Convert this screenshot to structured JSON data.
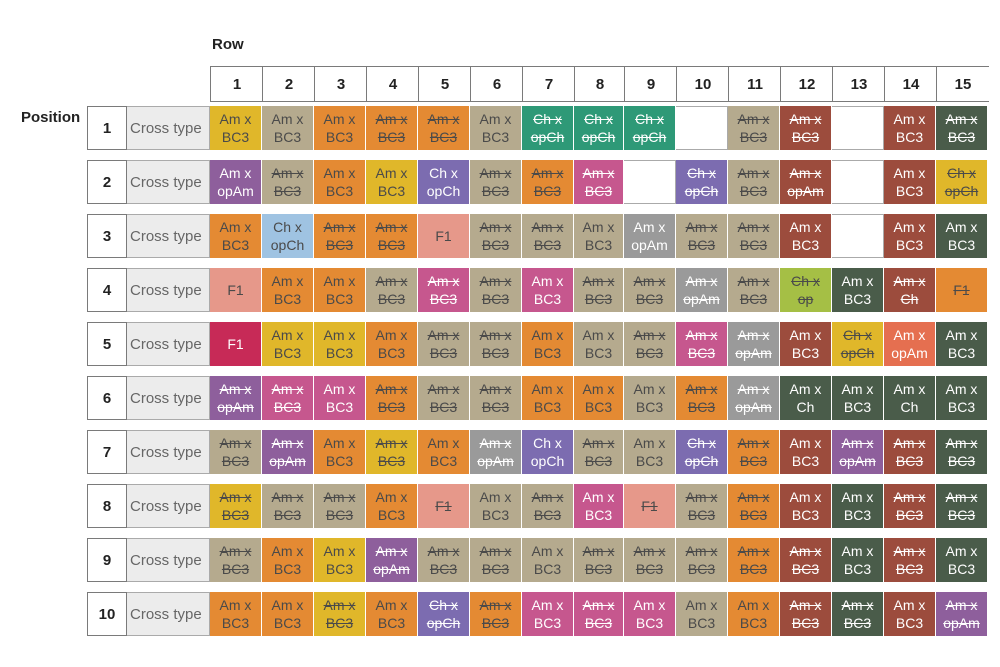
{
  "title_row": "Row",
  "title_position": "Position",
  "cross_type_label": "Cross type",
  "columns": [
    "1",
    "2",
    "3",
    "4",
    "5",
    "6",
    "7",
    "8",
    "9",
    "10",
    "11",
    "12",
    "13",
    "14",
    "15"
  ],
  "colors": {
    "Y": "#e0b72a",
    "O": "#e48a33",
    "G": "#b5aa8e",
    "T": "#2e9977",
    "B": "#9c4c3d",
    "W": "#ffffff",
    "P": "#8e5f9c",
    "K": "#c6578e",
    "V": "#7c6cb0",
    "L": "#9fc3e2",
    "S": "#e6988a",
    "R": "#c72a57",
    "M": "#9a9a9a",
    "N": "#a5bf45",
    "D": "#4a5c4a",
    "E": "#e56f50"
  },
  "rows": [
    {
      "pos": "1",
      "cells": [
        {
          "t": "Am x\nBC3",
          "c": "Y",
          "s": false
        },
        {
          "t": "Am x\nBC3",
          "c": "G",
          "s": false
        },
        {
          "t": "Am x\nBC3",
          "c": "O",
          "s": false
        },
        {
          "t": "Am x\nBC3",
          "c": "O",
          "s": true
        },
        {
          "t": "Am x\nBC3",
          "c": "O",
          "s": true
        },
        {
          "t": "Am x\nBC3",
          "c": "G",
          "s": false
        },
        {
          "t": "Ch x\nopCh",
          "c": "T",
          "s": true
        },
        {
          "t": "Ch x\nopCh",
          "c": "T",
          "s": true
        },
        {
          "t": "Ch x\nopCh",
          "c": "T",
          "s": true
        },
        {
          "t": "",
          "c": "W",
          "s": false
        },
        {
          "t": "Am x\nBC3",
          "c": "G",
          "s": true
        },
        {
          "t": "Am x\nBC3",
          "c": "B",
          "s": true
        },
        {
          "t": "",
          "c": "W",
          "s": false
        },
        {
          "t": "Am x\nBC3",
          "c": "B",
          "s": false
        },
        {
          "t": "Am x\nBC3",
          "c": "D",
          "s": true
        }
      ]
    },
    {
      "pos": "2",
      "cells": [
        {
          "t": "Am x\nopAm",
          "c": "P",
          "s": false
        },
        {
          "t": "Am x\nBC3",
          "c": "G",
          "s": true
        },
        {
          "t": "Am x\nBC3",
          "c": "O",
          "s": false
        },
        {
          "t": "Am x\nBC3",
          "c": "Y",
          "s": false
        },
        {
          "t": "Ch x\nopCh",
          "c": "V",
          "s": false
        },
        {
          "t": "Am x\nBC3",
          "c": "G",
          "s": true
        },
        {
          "t": "Am x\nBC3",
          "c": "O",
          "s": true
        },
        {
          "t": "Am x\nBC3",
          "c": "K",
          "s": true
        },
        {
          "t": "",
          "c": "W",
          "s": false
        },
        {
          "t": "Ch x\nopCh",
          "c": "V",
          "s": true
        },
        {
          "t": "Am x\nBC3",
          "c": "G",
          "s": true
        },
        {
          "t": "Am x\nopAm",
          "c": "B",
          "s": true
        },
        {
          "t": "",
          "c": "W",
          "s": false
        },
        {
          "t": "Am x\nBC3",
          "c": "B",
          "s": false
        },
        {
          "t": "Ch x\nopCh",
          "c": "Y",
          "s": true
        }
      ]
    },
    {
      "pos": "3",
      "cells": [
        {
          "t": "Am x\nBC3",
          "c": "O",
          "s": false
        },
        {
          "t": "Ch x\nopCh",
          "c": "L",
          "s": false
        },
        {
          "t": "Am x\nBC3",
          "c": "O",
          "s": true
        },
        {
          "t": "Am x\nBC3",
          "c": "O",
          "s": true
        },
        {
          "t": "F1",
          "c": "S",
          "s": false
        },
        {
          "t": "Am x\nBC3",
          "c": "G",
          "s": true
        },
        {
          "t": "Am x\nBC3",
          "c": "G",
          "s": true
        },
        {
          "t": "Am x\nBC3",
          "c": "G",
          "s": false
        },
        {
          "t": "Am x\nopAm",
          "c": "M",
          "s": false
        },
        {
          "t": "Am x\nBC3",
          "c": "G",
          "s": true
        },
        {
          "t": "Am x\nBC3",
          "c": "G",
          "s": true
        },
        {
          "t": "Am x\nBC3",
          "c": "B",
          "s": false
        },
        {
          "t": "",
          "c": "W",
          "s": false
        },
        {
          "t": "Am x\nBC3",
          "c": "B",
          "s": false
        },
        {
          "t": "Am x\nBC3",
          "c": "D",
          "s": false
        }
      ]
    },
    {
      "pos": "4",
      "cells": [
        {
          "t": "F1",
          "c": "S",
          "s": false
        },
        {
          "t": "Am x\nBC3",
          "c": "O",
          "s": false
        },
        {
          "t": "Am x\nBC3",
          "c": "O",
          "s": false
        },
        {
          "t": "Am x\nBC3",
          "c": "G",
          "s": true
        },
        {
          "t": "Am x\nBC3",
          "c": "K",
          "s": true
        },
        {
          "t": "Am x\nBC3",
          "c": "G",
          "s": true
        },
        {
          "t": "Am x\nBC3",
          "c": "K",
          "s": false
        },
        {
          "t": "Am x\nBC3",
          "c": "G",
          "s": true
        },
        {
          "t": "Am x\nBC3",
          "c": "G",
          "s": true
        },
        {
          "t": "Am x\nopAm",
          "c": "M",
          "s": true
        },
        {
          "t": "Am x\nBC3",
          "c": "G",
          "s": true
        },
        {
          "t": "Ch x\nop",
          "c": "N",
          "s": true
        },
        {
          "t": "Am x\nBC3",
          "c": "D",
          "s": false
        },
        {
          "t": "Am x\nCh",
          "c": "B",
          "s": true
        },
        {
          "t": "F1",
          "c": "O",
          "s": true
        }
      ]
    },
    {
      "pos": "5",
      "cells": [
        {
          "t": "F1",
          "c": "R",
          "s": false
        },
        {
          "t": "Am x\nBC3",
          "c": "Y",
          "s": false
        },
        {
          "t": "Am x\nBC3",
          "c": "Y",
          "s": false
        },
        {
          "t": "Am x\nBC3",
          "c": "O",
          "s": false
        },
        {
          "t": "Am x\nBC3",
          "c": "G",
          "s": true
        },
        {
          "t": "Am x\nBC3",
          "c": "G",
          "s": true
        },
        {
          "t": "Am x\nBC3",
          "c": "O",
          "s": false
        },
        {
          "t": "Am x\nBC3",
          "c": "G",
          "s": false
        },
        {
          "t": "Am x\nBC3",
          "c": "G",
          "s": true
        },
        {
          "t": "Am x\nBC3",
          "c": "K",
          "s": true
        },
        {
          "t": "Am x\nopAm",
          "c": "M",
          "s": true
        },
        {
          "t": "Am x\nBC3",
          "c": "B",
          "s": false
        },
        {
          "t": "Ch x\nopCh",
          "c": "Y",
          "s": true
        },
        {
          "t": "Am x\nopAm",
          "c": "E",
          "s": false
        },
        {
          "t": "Am x\nBC3",
          "c": "D",
          "s": false
        }
      ]
    },
    {
      "pos": "6",
      "cells": [
        {
          "t": "Am x\nopAm",
          "c": "P",
          "s": true
        },
        {
          "t": "Am x\nBC3",
          "c": "K",
          "s": true
        },
        {
          "t": "Am x\nBC3",
          "c": "K",
          "s": false
        },
        {
          "t": "Am x\nBC3",
          "c": "O",
          "s": true
        },
        {
          "t": "Am x\nBC3",
          "c": "G",
          "s": true
        },
        {
          "t": "Am x\nBC3",
          "c": "G",
          "s": true
        },
        {
          "t": "Am x\nBC3",
          "c": "O",
          "s": false
        },
        {
          "t": "Am x\nBC3",
          "c": "O",
          "s": false
        },
        {
          "t": "Am x\nBC3",
          "c": "G",
          "s": false
        },
        {
          "t": "Am x\nBC3",
          "c": "O",
          "s": true
        },
        {
          "t": "Am x\nopAm",
          "c": "M",
          "s": true
        },
        {
          "t": "Am x\nCh",
          "c": "D",
          "s": false
        },
        {
          "t": "Am x\nBC3",
          "c": "D",
          "s": false
        },
        {
          "t": "Am x\nCh",
          "c": "D",
          "s": false
        },
        {
          "t": "Am x\nBC3",
          "c": "D",
          "s": false
        }
      ]
    },
    {
      "pos": "7",
      "cells": [
        {
          "t": "Am x\nBC3",
          "c": "G",
          "s": true
        },
        {
          "t": "Am x\nopAm",
          "c": "P",
          "s": true
        },
        {
          "t": "Am x\nBC3",
          "c": "O",
          "s": false
        },
        {
          "t": "Am x\nBC3",
          "c": "Y",
          "s": true
        },
        {
          "t": "Am x\nBC3",
          "c": "O",
          "s": false
        },
        {
          "t": "Am x\nopAm",
          "c": "M",
          "s": true
        },
        {
          "t": "Ch x\nopCh",
          "c": "V",
          "s": false
        },
        {
          "t": "Am x\nBC3",
          "c": "G",
          "s": true
        },
        {
          "t": "Am x\nBC3",
          "c": "G",
          "s": false
        },
        {
          "t": "Ch x\nopCh",
          "c": "V",
          "s": true
        },
        {
          "t": "Am x\nBC3",
          "c": "O",
          "s": true
        },
        {
          "t": "Am x\nBC3",
          "c": "B",
          "s": false
        },
        {
          "t": "Am x\nopAm",
          "c": "P",
          "s": true
        },
        {
          "t": "Am x\nBC3",
          "c": "B",
          "s": true
        },
        {
          "t": "Am x\nBC3",
          "c": "D",
          "s": true
        }
      ]
    },
    {
      "pos": "8",
      "cells": [
        {
          "t": "Am x\nBC3",
          "c": "Y",
          "s": true
        },
        {
          "t": "Am x\nBC3",
          "c": "G",
          "s": true
        },
        {
          "t": "Am x\nBC3",
          "c": "G",
          "s": true
        },
        {
          "t": "Am x\nBC3",
          "c": "O",
          "s": false
        },
        {
          "t": "F1",
          "c": "S",
          "s": true
        },
        {
          "t": "Am x\nBC3",
          "c": "G",
          "s": false
        },
        {
          "t": "Am x\nBC3",
          "c": "G",
          "s": true
        },
        {
          "t": "Am x\nBC3",
          "c": "K",
          "s": false
        },
        {
          "t": "F1",
          "c": "S",
          "s": true
        },
        {
          "t": "Am x\nBC3",
          "c": "G",
          "s": true
        },
        {
          "t": "Am x\nBC3",
          "c": "O",
          "s": true
        },
        {
          "t": "Am x\nBC3",
          "c": "B",
          "s": false
        },
        {
          "t": "Am x\nBC3",
          "c": "D",
          "s": false
        },
        {
          "t": "Am x\nBC3",
          "c": "B",
          "s": true
        },
        {
          "t": "Am x\nBC3",
          "c": "D",
          "s": true
        }
      ]
    },
    {
      "pos": "9",
      "cells": [
        {
          "t": "Am x\nBC3",
          "c": "G",
          "s": true
        },
        {
          "t": "Am x\nBC3",
          "c": "O",
          "s": false
        },
        {
          "t": "Am x\nBC3",
          "c": "Y",
          "s": false
        },
        {
          "t": "Am x\nopAm",
          "c": "P",
          "s": true
        },
        {
          "t": "Am x\nBC3",
          "c": "G",
          "s": true
        },
        {
          "t": "Am x\nBC3",
          "c": "G",
          "s": true
        },
        {
          "t": "Am x\nBC3",
          "c": "G",
          "s": false
        },
        {
          "t": "Am x\nBC3",
          "c": "G",
          "s": true
        },
        {
          "t": "Am x\nBC3",
          "c": "G",
          "s": true
        },
        {
          "t": "Am x\nBC3",
          "c": "G",
          "s": true
        },
        {
          "t": "Am x\nBC3",
          "c": "O",
          "s": true
        },
        {
          "t": "Am x\nBC3",
          "c": "B",
          "s": true
        },
        {
          "t": "Am x\nBC3",
          "c": "D",
          "s": false
        },
        {
          "t": "Am x\nBC3",
          "c": "B",
          "s": true
        },
        {
          "t": "Am x\nBC3",
          "c": "D",
          "s": false
        }
      ]
    },
    {
      "pos": "10",
      "cells": [
        {
          "t": "Am x\nBC3",
          "c": "O",
          "s": false
        },
        {
          "t": "Am x\nBC3",
          "c": "O",
          "s": false
        },
        {
          "t": "Am x\nBC3",
          "c": "Y",
          "s": true
        },
        {
          "t": "Am x\nBC3",
          "c": "O",
          "s": false
        },
        {
          "t": "Ch x\nopCh",
          "c": "V",
          "s": true
        },
        {
          "t": "Am x\nBC3",
          "c": "O",
          "s": true
        },
        {
          "t": "Am x\nBC3",
          "c": "K",
          "s": false
        },
        {
          "t": "Am x\nBC3",
          "c": "K",
          "s": true
        },
        {
          "t": "Am x\nBC3",
          "c": "K",
          "s": false
        },
        {
          "t": "Am x\nBC3",
          "c": "G",
          "s": false
        },
        {
          "t": "Am x\nBC3",
          "c": "O",
          "s": false
        },
        {
          "t": "Am x\nBC3",
          "c": "B",
          "s": true
        },
        {
          "t": "Am x\nBC3",
          "c": "D",
          "s": true
        },
        {
          "t": "Am x\nBC3",
          "c": "B",
          "s": false
        },
        {
          "t": "Am x\nopAm",
          "c": "P",
          "s": true
        }
      ]
    }
  ]
}
